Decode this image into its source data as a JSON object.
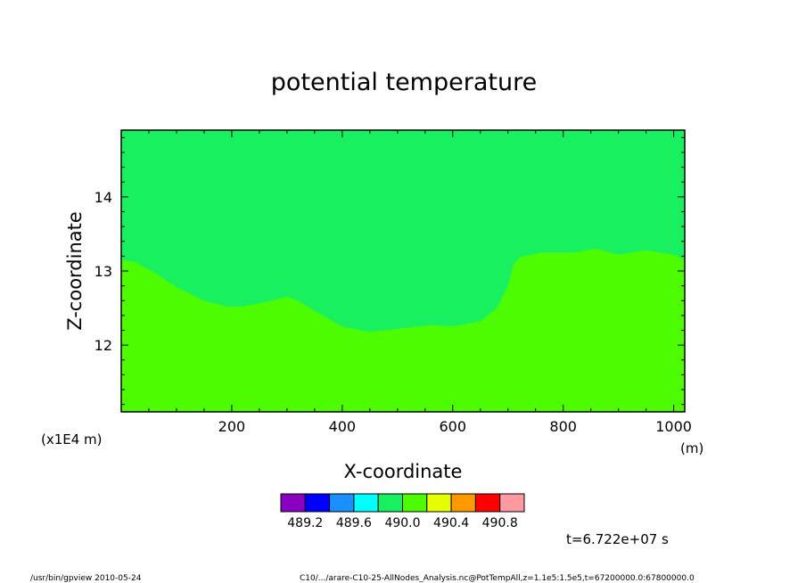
{
  "chart_data": {
    "type": "heatmap",
    "title": "potential temperature",
    "xlabel": "X-coordinate",
    "ylabel": "Z-coordinate",
    "x_unit": "(m)",
    "y_unit": "(x1E4 m)",
    "xlim": [
      0,
      1020
    ],
    "ylim": [
      11.1,
      14.9
    ],
    "x_ticks": [
      "200",
      "400",
      "600",
      "800",
      "1000"
    ],
    "y_ticks": [
      "12",
      "13",
      "14"
    ],
    "regions": [
      {
        "name": "upper",
        "color": "#19f060"
      },
      {
        "name": "lower",
        "color": "#4dfc00"
      }
    ],
    "boundary": {
      "x": [
        0,
        25,
        60,
        100,
        150,
        190,
        220,
        260,
        300,
        320,
        360,
        400,
        450,
        500,
        560,
        600,
        650,
        680,
        700,
        710,
        720,
        760,
        820,
        860,
        900,
        950,
        1000,
        1020
      ],
      "z": [
        13.15,
        13.12,
        12.98,
        12.78,
        12.6,
        12.52,
        12.52,
        12.58,
        12.65,
        12.6,
        12.42,
        12.25,
        12.18,
        12.22,
        12.27,
        12.25,
        12.32,
        12.5,
        12.8,
        13.08,
        13.18,
        13.25,
        13.25,
        13.3,
        13.22,
        13.28,
        13.22,
        13.15
      ]
    },
    "colorbar": {
      "colors": [
        "#8a00c0",
        "#0000ff",
        "#1a90ff",
        "#00ffff",
        "#19f060",
        "#4dfc00",
        "#e6ff00",
        "#ff9900",
        "#ff0000",
        "#ff9aa0"
      ],
      "labels": [
        "489.2",
        "489.6",
        "490.0",
        "490.4",
        "490.8"
      ]
    }
  },
  "annotation": {
    "time": "t=6.722e+07 s"
  },
  "footer": {
    "left": "/usr/bin/gpview  2010-05-24",
    "right": "C10/.../arare-C10-25-AllNodes_Analysis.nc@PotTempAll,z=1.1e5:1.5e5,t=67200000.0:67800000.0"
  }
}
